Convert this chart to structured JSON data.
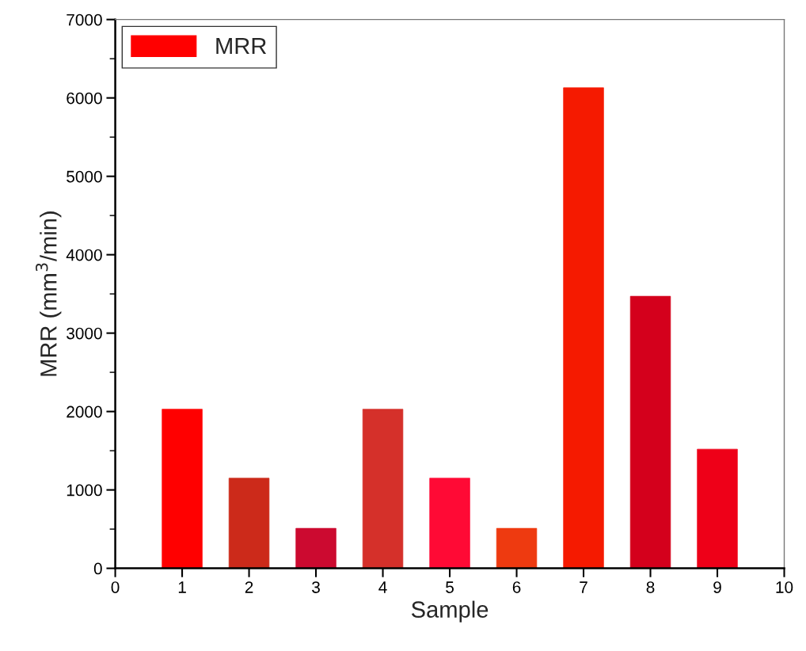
{
  "chart_data": {
    "type": "bar",
    "xlabel": "Sample",
    "ylabel": "MRR (mm$^{3}$/min)",
    "x": [
      1,
      2,
      3,
      4,
      5,
      6,
      7,
      8,
      9
    ],
    "series": [
      {
        "name": "MRR",
        "color": "#ff0000",
        "colors": [
          "#ff0000",
          "#cc2a1a",
          "#cc0a30",
          "#d5302a",
          "#ff0a35",
          "#ee3a10",
          "#f51a00",
          "#d4001c",
          "#ee0018"
        ],
        "values": [
          2030,
          1150,
          510,
          2030,
          1150,
          510,
          6130,
          3470,
          1520
        ]
      }
    ],
    "xlim": [
      0,
      10
    ],
    "xticks": [
      0,
      1,
      2,
      3,
      4,
      5,
      6,
      7,
      8,
      9,
      10
    ],
    "ylim": [
      0,
      7000
    ],
    "yticks": [
      0,
      1000,
      2000,
      3000,
      4000,
      5000,
      6000,
      7000
    ],
    "grid": false,
    "legend": "top left"
  }
}
